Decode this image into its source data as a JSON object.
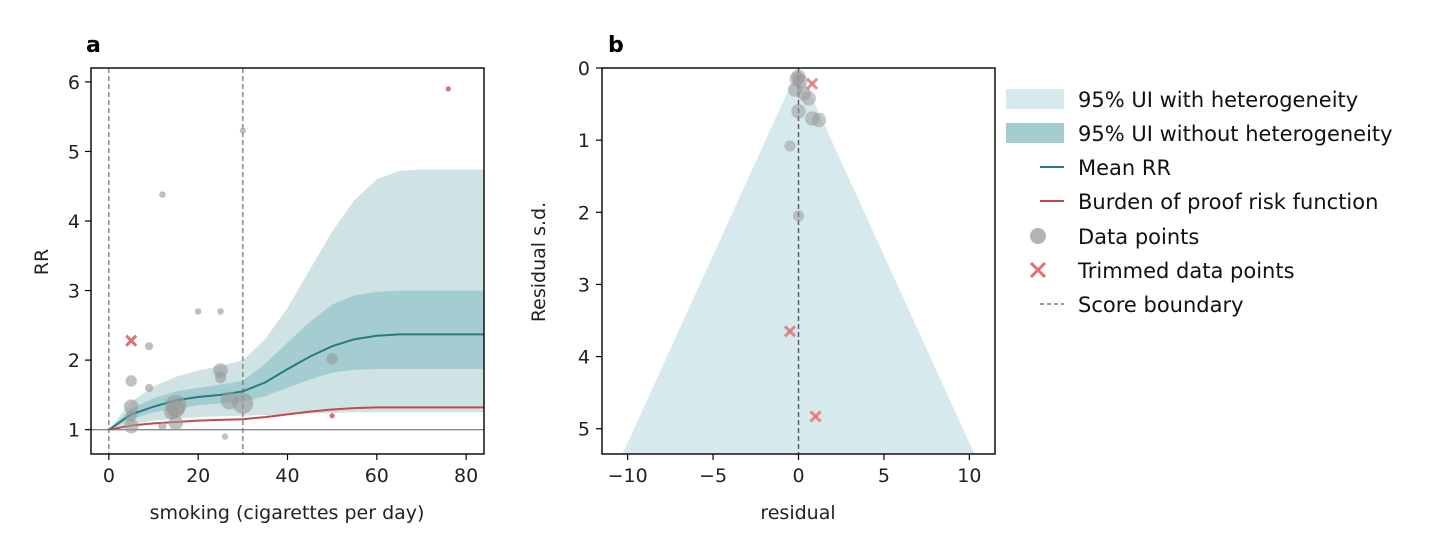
{
  "chart_data": [
    {
      "panel_label": "a",
      "type": "line",
      "xlabel": "smoking (cigarettes per day)",
      "ylabel": "RR",
      "xlim": [
        -4,
        84
      ],
      "ylim": [
        0.65,
        6.2
      ],
      "xticks": [
        0,
        20,
        40,
        60,
        80
      ],
      "yticks": [
        1,
        2,
        3,
        4,
        5,
        6
      ],
      "score_boundaries": [
        0,
        30
      ],
      "reference_line": 1,
      "ui_with_heterogeneity": {
        "x": [
          0,
          5,
          10,
          15,
          20,
          25,
          30,
          35,
          40,
          45,
          50,
          55,
          60,
          65,
          70,
          75,
          80,
          84
        ],
        "lower": [
          1.0,
          1.08,
          1.13,
          1.16,
          1.18,
          1.19,
          1.2,
          1.21,
          1.22,
          1.23,
          1.24,
          1.25,
          1.25,
          1.25,
          1.25,
          1.25,
          1.25,
          1.25
        ],
        "upper": [
          1.0,
          1.4,
          1.62,
          1.76,
          1.85,
          1.92,
          2.0,
          2.3,
          2.75,
          3.3,
          3.85,
          4.3,
          4.6,
          4.72,
          4.74,
          4.74,
          4.74,
          4.74
        ]
      },
      "ui_without_heterogeneity": {
        "x": [
          0,
          5,
          10,
          15,
          20,
          25,
          30,
          35,
          40,
          45,
          50,
          55,
          60,
          65,
          70,
          75,
          80,
          84
        ],
        "lower": [
          1.0,
          1.15,
          1.25,
          1.3,
          1.35,
          1.38,
          1.4,
          1.48,
          1.6,
          1.72,
          1.82,
          1.86,
          1.87,
          1.87,
          1.87,
          1.87,
          1.87,
          1.87
        ],
        "upper": [
          1.0,
          1.3,
          1.45,
          1.55,
          1.6,
          1.65,
          1.7,
          1.95,
          2.25,
          2.55,
          2.8,
          2.93,
          2.98,
          3.0,
          3.0,
          3.0,
          3.0,
          3.0
        ]
      },
      "mean_rr": {
        "x": [
          0,
          5,
          10,
          15,
          20,
          25,
          30,
          35,
          40,
          45,
          50,
          55,
          60,
          65,
          70,
          75,
          80,
          84
        ],
        "y": [
          1.0,
          1.22,
          1.33,
          1.42,
          1.47,
          1.5,
          1.55,
          1.68,
          1.87,
          2.05,
          2.2,
          2.3,
          2.35,
          2.37,
          2.37,
          2.37,
          2.37,
          2.37
        ]
      },
      "burden_of_proof": {
        "x": [
          0,
          5,
          10,
          15,
          20,
          25,
          30,
          35,
          40,
          45,
          50,
          55,
          60,
          65,
          70,
          75,
          80,
          84
        ],
        "y": [
          1.0,
          1.06,
          1.09,
          1.11,
          1.13,
          1.14,
          1.15,
          1.18,
          1.22,
          1.26,
          1.29,
          1.31,
          1.32,
          1.32,
          1.32,
          1.32,
          1.32,
          1.32
        ]
      },
      "data_points": [
        {
          "x": 5,
          "y": 1.05,
          "w": 3
        },
        {
          "x": 5,
          "y": 1.2,
          "w": 2
        },
        {
          "x": 5,
          "y": 1.33,
          "w": 3
        },
        {
          "x": 5,
          "y": 1.7,
          "w": 2
        },
        {
          "x": 9,
          "y": 2.2,
          "w": 1
        },
        {
          "x": 9,
          "y": 1.6,
          "w": 1
        },
        {
          "x": 12,
          "y": 4.38,
          "w": 0.5
        },
        {
          "x": 12,
          "y": 1.05,
          "w": 1
        },
        {
          "x": 14,
          "y": 1.25,
          "w": 3
        },
        {
          "x": 15,
          "y": 1.35,
          "w": 5
        },
        {
          "x": 15,
          "y": 1.1,
          "w": 3
        },
        {
          "x": 15,
          "y": 1.3,
          "w": 4
        },
        {
          "x": 20,
          "y": 2.7,
          "w": 0.5
        },
        {
          "x": 25,
          "y": 2.7,
          "w": 0.5
        },
        {
          "x": 25,
          "y": 1.85,
          "w": 3
        },
        {
          "x": 25,
          "y": 1.75,
          "w": 2
        },
        {
          "x": 26,
          "y": 0.9,
          "w": 0.4
        },
        {
          "x": 27,
          "y": 1.42,
          "w": 4
        },
        {
          "x": 30,
          "y": 1.38,
          "w": 5
        },
        {
          "x": 30,
          "y": 5.3,
          "w": 0.4
        },
        {
          "x": 50,
          "y": 2.02,
          "w": 2
        }
      ],
      "trimmed_points": [
        {
          "x": 5,
          "y": 2.28,
          "marker": "x",
          "w": 2
        },
        {
          "x": 50,
          "y": 1.2,
          "marker": "dot",
          "w": 0.5
        },
        {
          "x": 76,
          "y": 5.9,
          "marker": "dot",
          "w": 0.5
        }
      ]
    },
    {
      "panel_label": "b",
      "type": "scatter",
      "xlabel": "residual",
      "ylabel": "Residual s.d.",
      "xlim": [
        -11.5,
        11.5
      ],
      "ylim": [
        5.35,
        0
      ],
      "xticks": [
        -10,
        -5,
        0,
        5,
        10
      ],
      "xtick_labels": [
        "−10",
        "−5",
        "0",
        "5",
        "10"
      ],
      "yticks": [
        0,
        1,
        2,
        3,
        4,
        5
      ],
      "funnel": {
        "apex": [
          0,
          0
        ],
        "base_left": [
          -10.3,
          5.35
        ],
        "base_right": [
          10.3,
          5.35
        ]
      },
      "boundary_x": 0,
      "data_points": [
        {
          "x": 0.0,
          "y": 0.12,
          "w": 2
        },
        {
          "x": -0.1,
          "y": 0.15,
          "w": 2
        },
        {
          "x": 0.1,
          "y": 0.18,
          "w": 2
        },
        {
          "x": -0.2,
          "y": 0.3,
          "w": 2
        },
        {
          "x": 0.3,
          "y": 0.35,
          "w": 2
        },
        {
          "x": 0.6,
          "y": 0.42,
          "w": 2
        },
        {
          "x": 0.0,
          "y": 0.6,
          "w": 2
        },
        {
          "x": 0.8,
          "y": 0.7,
          "w": 2
        },
        {
          "x": 1.2,
          "y": 0.72,
          "w": 2
        },
        {
          "x": -0.5,
          "y": 1.08,
          "w": 1
        },
        {
          "x": 0.0,
          "y": 2.05,
          "w": 1
        }
      ],
      "trimmed_points": [
        {
          "x": 0.8,
          "y": 0.22
        },
        {
          "x": -0.5,
          "y": 3.65
        },
        {
          "x": 1.0,
          "y": 4.83
        }
      ]
    }
  ],
  "legend": {
    "items": [
      {
        "label": "95% UI with heterogeneity",
        "kind": "patch-light"
      },
      {
        "label": "95% UI without heterogeneity",
        "kind": "patch-dark"
      },
      {
        "label": "Mean RR",
        "kind": "line-teal"
      },
      {
        "label": "Burden of proof risk function",
        "kind": "line-red"
      },
      {
        "label": "Data points",
        "kind": "dot-grey"
      },
      {
        "label": "Trimmed data points",
        "kind": "x-red"
      },
      {
        "label": "Score boundary",
        "kind": "dashed"
      }
    ]
  },
  "colors": {
    "ui_light": "#cfe3e5",
    "ui_dark": "#a3cdd0",
    "funnel": "#d6e9ed",
    "mean": "#2b7a80",
    "burden": "#c24a4a",
    "point": "#9a9a9a",
    "trimmed": "#e07070",
    "boundary": "#777777"
  }
}
